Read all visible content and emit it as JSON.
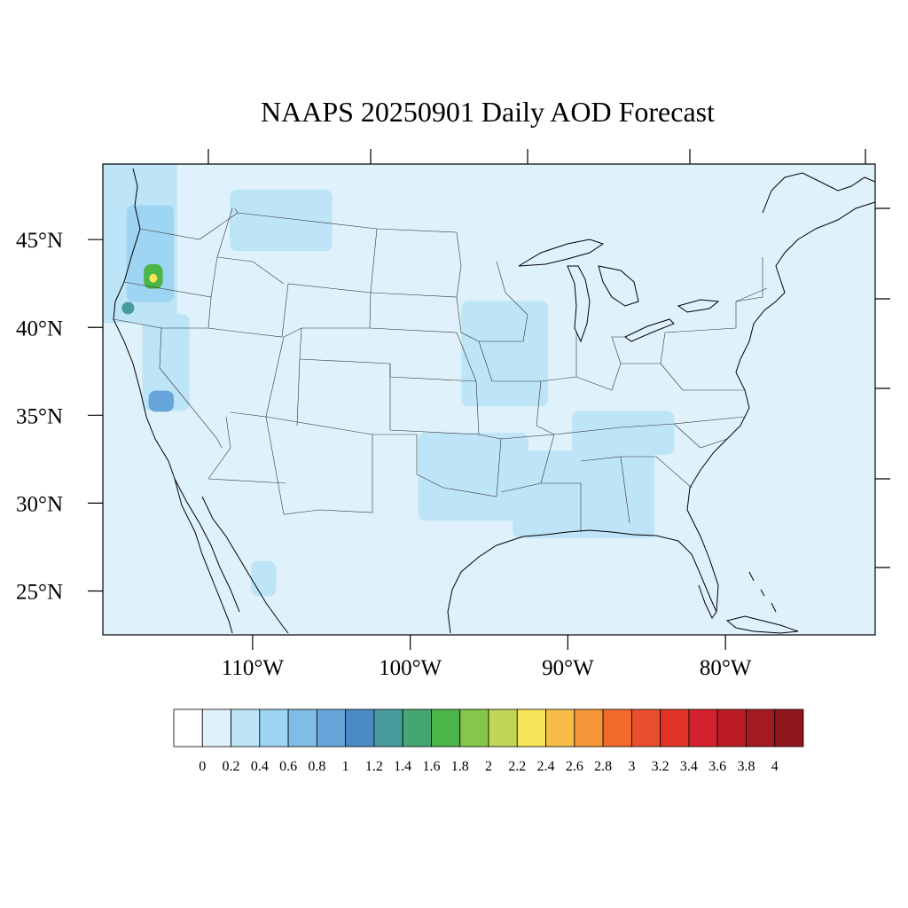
{
  "title": "NAAPS 20250901 Daily AOD Forecast",
  "map": {
    "extent": {
      "lon_min": -119.5,
      "lon_max": -70.5,
      "lat_min": 22.5,
      "lat_max": 49.3
    },
    "background_color": "#dff2fb",
    "lat_ticks": [
      {
        "lat": 45,
        "label": "45°N"
      },
      {
        "lat": 40,
        "label": "40°N"
      },
      {
        "lat": 35,
        "label": "35°N"
      },
      {
        "lat": 30,
        "label": "30°N"
      },
      {
        "lat": 25,
        "label": "25°N"
      }
    ],
    "lon_ticks": [
      {
        "lon": -110,
        "label": "110°W"
      },
      {
        "lon": -100,
        "label": "100°W"
      },
      {
        "lon": -90,
        "label": "90°W"
      },
      {
        "lon": -80,
        "label": "80°W"
      }
    ],
    "aod_regions": [
      {
        "region": "pacific-northwest-coast",
        "lon": -117.8,
        "lat": 45.0,
        "lon_span": 6.0,
        "lat_span": 9.5,
        "aod": 0.3
      },
      {
        "region": "oregon-cascades",
        "lon": -116.5,
        "lat": 44.2,
        "lon_span": 3.0,
        "lat_span": 5.5,
        "aod": 0.6
      },
      {
        "region": "oregon-hotspot",
        "lon": -116.3,
        "lat": 42.9,
        "lon_span": 1.2,
        "lat_span": 1.4,
        "aod": 1.7
      },
      {
        "region": "oregon-peak",
        "lon": -116.3,
        "lat": 42.8,
        "lon_span": 0.5,
        "lat_span": 0.5,
        "aod": 2.2
      },
      {
        "region": "northern-california-spot",
        "lon": -117.9,
        "lat": 41.1,
        "lon_span": 0.8,
        "lat_span": 0.7,
        "aod": 1.3
      },
      {
        "region": "sierra-nevada",
        "lon": -115.5,
        "lat": 38.0,
        "lon_span": 3.0,
        "lat_span": 5.5,
        "aod": 0.3
      },
      {
        "region": "southern-sierra-spot",
        "lon": -115.8,
        "lat": 35.8,
        "lon_span": 1.6,
        "lat_span": 1.2,
        "aod": 0.8
      },
      {
        "region": "northern-rockies",
        "lon": -108.2,
        "lat": 46.1,
        "lon_span": 6.5,
        "lat_span": 3.5,
        "aod": 0.25
      },
      {
        "region": "midwest-band",
        "lon": -94.0,
        "lat": 38.5,
        "lon_span": 5.5,
        "lat_span": 6.0,
        "aod": 0.25
      },
      {
        "region": "southern-plains",
        "lon": -96.0,
        "lat": 31.5,
        "lon_span": 7.0,
        "lat_span": 5.0,
        "aod": 0.25
      },
      {
        "region": "gulf-coast-south",
        "lon": -89.0,
        "lat": 30.5,
        "lon_span": 9.0,
        "lat_span": 5.0,
        "aod": 0.25
      },
      {
        "region": "tennessee-valley",
        "lon": -86.5,
        "lat": 34.0,
        "lon_span": 6.5,
        "lat_span": 2.5,
        "aod": 0.25
      },
      {
        "region": "baja-spot",
        "lon": -109.3,
        "lat": 25.7,
        "lon_span": 1.6,
        "lat_span": 2.0,
        "aod": 0.25
      }
    ]
  },
  "colorbar": {
    "labels": [
      "0",
      "0.2",
      "0.4",
      "0.6",
      "0.8",
      "1",
      "1.2",
      "1.4",
      "1.6",
      "1.8",
      "2",
      "2.2",
      "2.4",
      "2.6",
      "2.8",
      "3",
      "3.2",
      "3.4",
      "3.6",
      "3.8",
      "4"
    ],
    "colors": [
      "#ffffff",
      "#dff2fb",
      "#bde4f7",
      "#9dd5f3",
      "#7fbde6",
      "#66a5d9",
      "#4a8ac7",
      "#489b9d",
      "#46a673",
      "#4bb548",
      "#86c64d",
      "#c2d655",
      "#f8e559",
      "#f8bd48",
      "#f69638",
      "#f26a2c",
      "#e84e2b",
      "#e03427",
      "#d2212d",
      "#bc1c26",
      "#a31a20",
      "#8f161b"
    ]
  }
}
